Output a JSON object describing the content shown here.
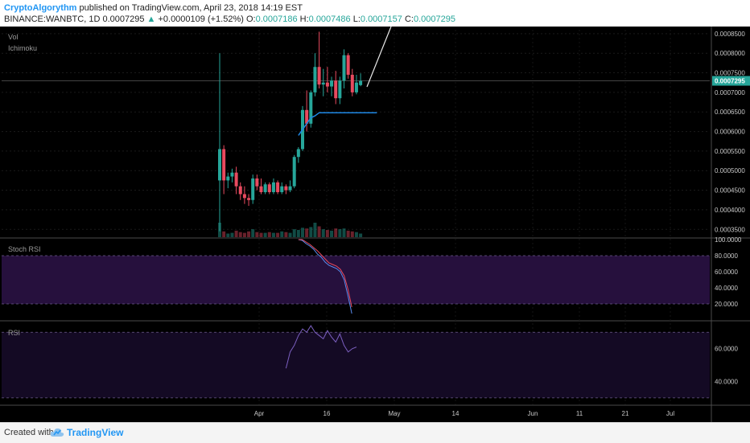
{
  "header": {
    "author": "CryptoAlgorythm",
    "published_text": "published on TradingView.com, April 23, 2018 14:19 EST",
    "symbol": "BINANCE:WANBTC, 1D",
    "last": "0.0007295",
    "arrow": "▲",
    "change": "+0.0000109 (+1.52%)",
    "o_label": "O:",
    "o": "0.0007186",
    "h_label": "H:",
    "h": "0.0007486",
    "l_label": "L:",
    "l": "0.0007157",
    "c_label": "C:",
    "c": "0.0007295"
  },
  "footer": {
    "created_with": "Created with",
    "brand": "TradingView",
    "logo_icon": "tradingview-cloud-icon"
  },
  "colors": {
    "background": "#000000",
    "up": "#26a69a",
    "down": "#e84a5f",
    "stoch_band": "#26103d",
    "rsi_band": "#140a24",
    "baseline": "#1e88e5",
    "axis_text": "#c8c8c8",
    "price_tag": "#26a69a"
  },
  "chart_data": [
    {
      "type": "candlestick",
      "panel": "price",
      "labels": [
        "Vol",
        "Ichimoku"
      ],
      "x_ticks": [
        "Apr",
        "16",
        "May",
        "14",
        "Jun",
        "11",
        "21",
        "Jul"
      ],
      "y_ticks": [
        "0.0008500",
        "0.0008000",
        "0.0007500",
        "0.0007000",
        "0.0006500",
        "0.0006000",
        "0.0005500",
        "0.0005000",
        "0.0004500",
        "0.0004000",
        "0.0003500"
      ],
      "ylim": [
        0.00033,
        0.00086
      ],
      "last_price_tag": "0.0007295",
      "candles": [
        {
          "o": 0.000475,
          "h": 0.0008,
          "l": 0.000345,
          "c": 0.000555
        },
        {
          "o": 0.000555,
          "h": 0.000565,
          "l": 0.00044,
          "c": 0.000475
        },
        {
          "o": 0.000475,
          "h": 0.000495,
          "l": 0.000455,
          "c": 0.000485
        },
        {
          "o": 0.000485,
          "h": 0.000505,
          "l": 0.00047,
          "c": 0.000495
        },
        {
          "o": 0.000495,
          "h": 0.00051,
          "l": 0.00044,
          "c": 0.00046
        },
        {
          "o": 0.00046,
          "h": 0.00047,
          "l": 0.000425,
          "c": 0.00044
        },
        {
          "o": 0.00044,
          "h": 0.00046,
          "l": 0.000415,
          "c": 0.00043
        },
        {
          "o": 0.00043,
          "h": 0.00044,
          "l": 0.00041,
          "c": 0.000425
        },
        {
          "o": 0.000425,
          "h": 0.00049,
          "l": 0.000415,
          "c": 0.00048
        },
        {
          "o": 0.00048,
          "h": 0.00049,
          "l": 0.00045,
          "c": 0.00046
        },
        {
          "o": 0.00046,
          "h": 0.00048,
          "l": 0.00044,
          "c": 0.000445
        },
        {
          "o": 0.000445,
          "h": 0.00047,
          "l": 0.00044,
          "c": 0.000465
        },
        {
          "o": 0.000465,
          "h": 0.00047,
          "l": 0.00044,
          "c": 0.000445
        },
        {
          "o": 0.000445,
          "h": 0.00048,
          "l": 0.00044,
          "c": 0.00047
        },
        {
          "o": 0.00047,
          "h": 0.000475,
          "l": 0.00044,
          "c": 0.000445
        },
        {
          "o": 0.000445,
          "h": 0.00047,
          "l": 0.00044,
          "c": 0.00046
        },
        {
          "o": 0.00046,
          "h": 0.000465,
          "l": 0.00044,
          "c": 0.00045
        },
        {
          "o": 0.00045,
          "h": 0.000475,
          "l": 0.000445,
          "c": 0.00046
        },
        {
          "o": 0.00046,
          "h": 0.00054,
          "l": 0.000455,
          "c": 0.000535
        },
        {
          "o": 0.000535,
          "h": 0.00056,
          "l": 0.00052,
          "c": 0.000555
        },
        {
          "o": 0.000555,
          "h": 0.000665,
          "l": 0.00055,
          "c": 0.000655
        },
        {
          "o": 0.000655,
          "h": 0.000705,
          "l": 0.0006,
          "c": 0.00062
        },
        {
          "o": 0.00062,
          "h": 0.000705,
          "l": 0.00061,
          "c": 0.0007
        },
        {
          "o": 0.0007,
          "h": 0.0008,
          "l": 0.00069,
          "c": 0.000765
        },
        {
          "o": 0.000765,
          "h": 0.000855,
          "l": 0.00071,
          "c": 0.00072
        },
        {
          "o": 0.00072,
          "h": 0.00076,
          "l": 0.00069,
          "c": 0.000725
        },
        {
          "o": 0.000725,
          "h": 0.000765,
          "l": 0.0007,
          "c": 0.000715
        },
        {
          "o": 0.000715,
          "h": 0.00074,
          "l": 0.00069,
          "c": 0.00073
        },
        {
          "o": 0.00073,
          "h": 0.000755,
          "l": 0.00067,
          "c": 0.000685
        },
        {
          "o": 0.000685,
          "h": 0.00074,
          "l": 0.00067,
          "c": 0.00073
        },
        {
          "o": 0.00073,
          "h": 0.00081,
          "l": 0.00071,
          "c": 0.000795
        },
        {
          "o": 0.000795,
          "h": 0.0008,
          "l": 0.000735,
          "c": 0.000745
        },
        {
          "o": 0.000745,
          "h": 0.00076,
          "l": 0.00069,
          "c": 0.0007
        },
        {
          "o": 0.0007,
          "h": 0.000745,
          "l": 0.000695,
          "c": 0.000725
        },
        {
          "o": 0.0007186,
          "h": 0.0007486,
          "l": 0.0007157,
          "c": 0.0007295
        }
      ],
      "volume": [
        100,
        40,
        25,
        30,
        45,
        35,
        30,
        40,
        55,
        35,
        30,
        30,
        35,
        30,
        30,
        40,
        35,
        30,
        55,
        50,
        65,
        60,
        70,
        100,
        75,
        55,
        50,
        45,
        60,
        55,
        60,
        45,
        40,
        35,
        25
      ],
      "baseline_values": [
        0.00059,
        0.000605,
        0.00062,
        0.000635,
        0.00064,
        0.000648,
        0.000648,
        0.000648,
        0.000648,
        0.000648,
        0.000648,
        0.000648,
        0.000648,
        0.000648,
        0.000648,
        0.000648
      ],
      "baseline_start_index": 19
    },
    {
      "type": "line",
      "panel": "stoch_rsi",
      "label": "Stoch RSI",
      "y_ticks": [
        "100.0000",
        "80.0000",
        "60.0000",
        "40.0000",
        "20.0000"
      ],
      "ylim": [
        0,
        100
      ],
      "band": [
        20,
        80
      ],
      "start_index": 19,
      "series": [
        {
          "color": "#5b8def",
          "values": [
            100,
            99,
            95,
            92,
            88,
            82,
            78,
            72,
            68,
            66,
            64,
            60,
            50,
            30,
            8
          ]
        },
        {
          "color": "#e84a5f",
          "values": [
            100,
            100,
            97,
            94,
            90,
            86,
            81,
            76,
            71,
            69,
            67,
            63,
            55,
            38,
            16
          ]
        }
      ]
    },
    {
      "type": "line",
      "panel": "rsi",
      "label": "RSI",
      "y_ticks": [
        "60.0000",
        "40.0000"
      ],
      "ylim": [
        26,
        76
      ],
      "band": [
        30,
        70
      ],
      "start_index": 16,
      "series": [
        {
          "color": "#7b5fc0",
          "values": [
            48,
            58,
            62,
            68,
            72,
            70,
            74,
            70,
            68,
            66,
            71,
            67,
            64,
            69,
            62,
            58,
            60,
            61
          ]
        }
      ]
    }
  ]
}
